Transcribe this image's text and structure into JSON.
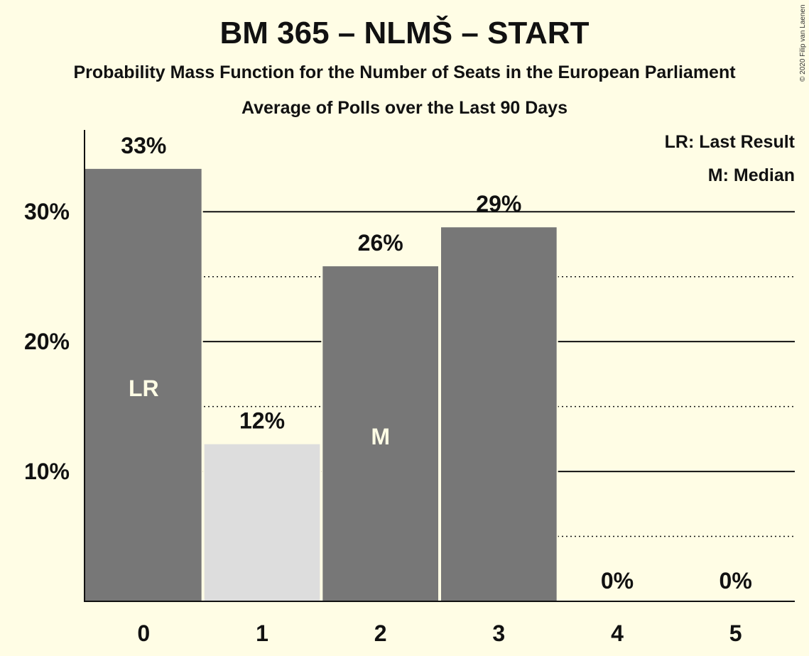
{
  "header": {
    "title": "BM 365 – NLMŠ – START",
    "subtitle": "Probability Mass Function for the Number of Seats in the European Parliament",
    "subtitle2": "Average of Polls over the Last 90 Days"
  },
  "legend": {
    "last_result": "LR: Last Result",
    "median": "M: Median"
  },
  "copyright": "© 2020 Filip van Laenen",
  "chart_data": {
    "type": "bar",
    "categories": [
      "0",
      "1",
      "2",
      "3",
      "4",
      "5"
    ],
    "values": [
      33.3,
      12.1,
      25.8,
      28.8,
      0,
      0
    ],
    "value_labels": [
      "33%",
      "12%",
      "26%",
      "29%",
      "0%",
      "0%"
    ],
    "inside_labels": [
      "LR",
      "",
      "M",
      "",
      "",
      ""
    ],
    "bar_colors": [
      "#777777",
      "#DDDDDD",
      "#777777",
      "#777777",
      "#777777",
      "#777777"
    ],
    "ylim": [
      0,
      36.3
    ],
    "yticks": [
      10,
      20,
      30
    ],
    "ytick_labels": [
      "10%",
      "20%",
      "30%"
    ],
    "minor_gridlines": [
      5,
      15,
      25
    ],
    "xlabel": "",
    "ylabel": "",
    "grid": true
  }
}
